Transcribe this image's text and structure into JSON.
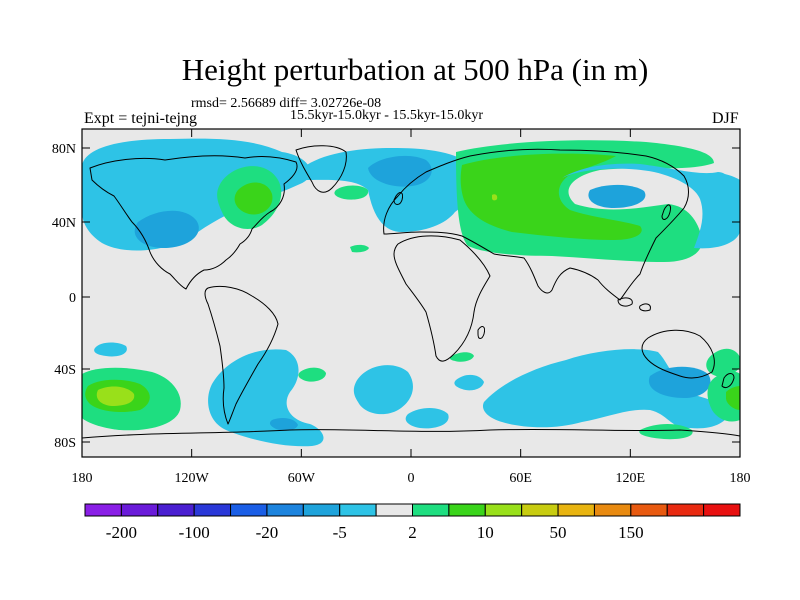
{
  "header": {
    "title": "Height perturbation at 500 hPa (in m)",
    "rmsd_diff": "rmsd= 2.56689 diff= 3.02726e-08",
    "period": "15.5kyr-15.0kyr - 15.5kyr-15.0kyr",
    "left_label": "Expt = tejni-tejng",
    "right_label": "DJF"
  },
  "map": {
    "background_color": "#e8e8e8",
    "lat_ticks": [
      "80N",
      "40N",
      "0",
      "40S",
      "80S"
    ],
    "lon_ticks": [
      "180",
      "120W",
      "60W",
      "0",
      "60E",
      "120E",
      "180"
    ]
  },
  "colorbar": {
    "colors": [
      "#8a1fe6",
      "#6a1bd9",
      "#4a1fd1",
      "#2a38d8",
      "#1a5ee6",
      "#1d84de",
      "#1ea3db",
      "#2ec3e6",
      "#e8e8e8",
      "#1ede80",
      "#3ad41a",
      "#99e01a",
      "#c8cc10",
      "#e8b410",
      "#e88a10",
      "#e85a10",
      "#e82a10",
      "#e81010"
    ],
    "labels": [
      "-200",
      "-100",
      "-20",
      "-5",
      "2",
      "10",
      "50",
      "150"
    ]
  }
}
